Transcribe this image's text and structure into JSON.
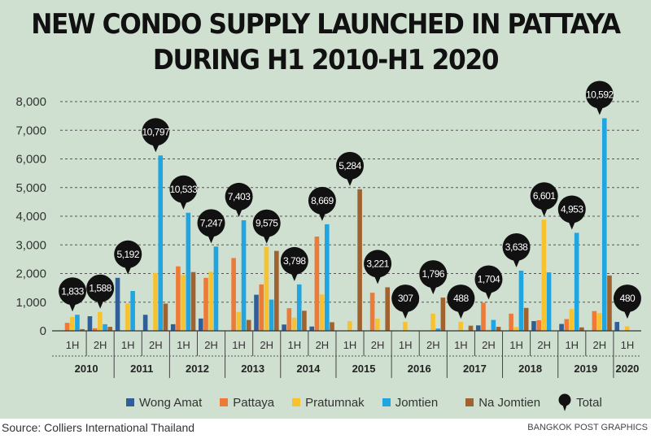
{
  "chart_data": {
    "type": "bar",
    "title": "NEW CONDO SUPPLY LAUNCHED IN PATTAYA DURING H1 2010-H1 2020",
    "title_lines": [
      "NEW CONDO SUPPLY LAUNCHED IN PATTAYA",
      "DURING H1 2010-H1 2020"
    ],
    "xlabel": "",
    "ylabel": "",
    "ylim": [
      0,
      8000
    ],
    "yticks": [
      0,
      1000,
      2000,
      3000,
      4000,
      5000,
      6000,
      7000,
      8000
    ],
    "ytick_labels": [
      "0",
      "1,000",
      "2,000",
      "3,000",
      "4,000",
      "5,000",
      "6,000",
      "7,000",
      "8,000"
    ],
    "grid": true,
    "legend_position": "bottom",
    "years": [
      "2010",
      "2011",
      "2012",
      "2013",
      "2014",
      "2015",
      "2016",
      "2017",
      "2018",
      "2019",
      "2020"
    ],
    "categories": [
      "1H",
      "2H",
      "1H",
      "2H",
      "1H",
      "2H",
      "1H",
      "2H",
      "1H",
      "2H",
      "1H",
      "2H",
      "1H",
      "2H",
      "1H",
      "2H",
      "1H",
      "2H",
      "1H",
      "2H",
      "1H"
    ],
    "series": [
      {
        "name": "Wong Amat",
        "color": "#2f5f96",
        "values": [
          0,
          510,
          1850,
          560,
          230,
          430,
          0,
          1260,
          220,
          150,
          0,
          0,
          0,
          0,
          0,
          190,
          0,
          340,
          240,
          0,
          310
        ]
      },
      {
        "name": "Pattaya",
        "color": "#ee7a37",
        "values": [
          280,
          90,
          0,
          0,
          2250,
          1850,
          2540,
          1620,
          790,
          3290,
          0,
          1330,
          0,
          0,
          0,
          980,
          600,
          370,
          410,
          690,
          0
        ]
      },
      {
        "name": "Pratumnak",
        "color": "#f7c22e",
        "values": [
          480,
          660,
          960,
          2020,
          1950,
          2060,
          660,
          2930,
          460,
          1270,
          340,
          420,
          310,
          600,
          310,
          40,
          130,
          3880,
          760,
          620,
          160
        ]
      },
      {
        "name": "Jomtien",
        "color": "#1fa5e0",
        "values": [
          560,
          230,
          1390,
          6120,
          4120,
          2940,
          3860,
          1090,
          1620,
          3720,
          0,
          0,
          0,
          80,
          0,
          380,
          2100,
          2040,
          3420,
          7420,
          0
        ]
      },
      {
        "name": "Na Jomtien",
        "color": "#a0622e",
        "values": [
          60,
          140,
          0,
          950,
          2050,
          0,
          380,
          2790,
          700,
          300,
          4940,
          1520,
          0,
          1160,
          180,
          140,
          800,
          0,
          120,
          1930,
          0
        ]
      }
    ],
    "totals": [
      1833,
      1588,
      5192,
      10797,
      10533,
      7247,
      7403,
      9575,
      3798,
      8669,
      5284,
      3221,
      307,
      1796,
      488,
      1704,
      3638,
      6601,
      4953,
      10592,
      480
    ],
    "total_labels": [
      "1,833",
      "1,588",
      "5,192",
      "10,797",
      "10,533",
      "7,247",
      "7,403",
      "9,575",
      "3,798",
      "8,669",
      "5,284",
      "3,221",
      "307",
      "1,796",
      "488",
      "1,704",
      "3,638",
      "6,601",
      "4,953",
      "10,592",
      "480"
    ],
    "total_legend": "Total",
    "total_color": "#111111"
  },
  "footer": {
    "source": "Source: Colliers International Thailand",
    "credit": "BANGKOK POST GRAPHICS"
  },
  "colors": {
    "background": "#cfe0d0",
    "grid": "#555555"
  }
}
